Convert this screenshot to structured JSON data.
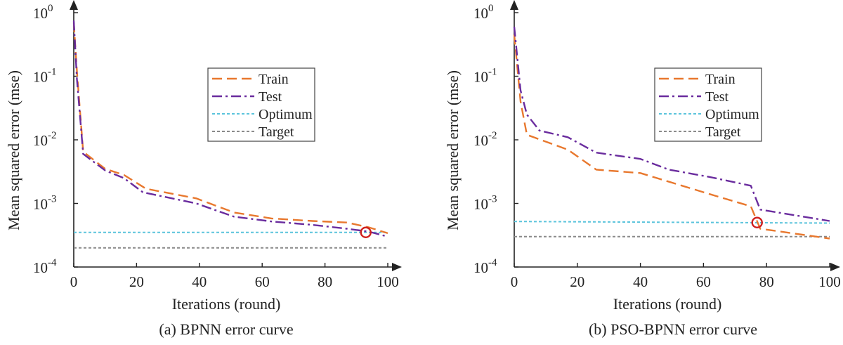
{
  "chart_data": [
    {
      "type": "line",
      "caption": "(a) BPNN error curve",
      "xlabel": "Iterations (round)",
      "ylabel": "Mean squared error (mse)",
      "xlim": [
        0,
        100
      ],
      "xticks": [
        "0",
        "20",
        "40",
        "60",
        "80",
        "100"
      ],
      "yscale": "log",
      "ylim": [
        0.0001,
        1
      ],
      "yticks": [
        {
          "base": "10",
          "exp": "-4"
        },
        {
          "base": "10",
          "exp": "-3"
        },
        {
          "base": "10",
          "exp": "-2"
        },
        {
          "base": "10",
          "exp": "-1"
        },
        {
          "base": "10",
          "exp": "0"
        }
      ],
      "legend_position": "upper-right",
      "series": [
        {
          "name": "Train",
          "color": "#E8782E",
          "style": "dashed",
          "x": [
            0,
            1,
            3,
            10,
            16,
            23,
            39,
            51,
            63,
            76,
            87,
            94,
            100
          ],
          "y": [
            0.7,
            0.12,
            0.0065,
            0.0035,
            0.0028,
            0.0017,
            0.0012,
            0.00072,
            0.00058,
            0.00053,
            0.0005,
            0.00042,
            0.00034
          ]
        },
        {
          "name": "Test",
          "color": "#6A2C9E",
          "style": "dashdot",
          "x": [
            0,
            1,
            3,
            10,
            16,
            22,
            39,
            51,
            63,
            76,
            87,
            94,
            100
          ],
          "y": [
            0.75,
            0.09,
            0.006,
            0.0033,
            0.0025,
            0.0015,
            0.001,
            0.00062,
            0.00052,
            0.00046,
            0.0004,
            0.00036,
            0.0003
          ]
        },
        {
          "name": "Optimum",
          "color": "#5BC4DC",
          "style": "dotted",
          "x": [
            0,
            100
          ],
          "y": [
            0.00035,
            0.00035
          ]
        },
        {
          "name": "Target",
          "color": "#8A8A8A",
          "style": "dotted",
          "x": [
            0,
            100
          ],
          "y": [
            0.0002,
            0.0002
          ]
        }
      ],
      "marker": {
        "x": 93,
        "y": 0.00035,
        "color": "#D0201E"
      }
    },
    {
      "type": "line",
      "caption": "(b) PSO-BPNN  error curve",
      "xlabel": "Iterations (round)",
      "ylabel": "Mean squared error (mse)",
      "xlim": [
        0,
        100
      ],
      "xticks": [
        "0",
        "20",
        "40",
        "60",
        "80",
        "100"
      ],
      "yscale": "log",
      "ylim": [
        0.0001,
        1
      ],
      "yticks": [
        {
          "base": "10",
          "exp": "-4"
        },
        {
          "base": "10",
          "exp": "-3"
        },
        {
          "base": "10",
          "exp": "-2"
        },
        {
          "base": "10",
          "exp": "-1"
        },
        {
          "base": "10",
          "exp": "0"
        }
      ],
      "legend_position": "upper-right",
      "series": [
        {
          "name": "Train",
          "color": "#E8782E",
          "style": "dashed",
          "x": [
            0,
            2,
            4,
            17,
            26,
            40,
            62,
            75,
            78,
            100
          ],
          "y": [
            0.45,
            0.04,
            0.012,
            0.007,
            0.0034,
            0.003,
            0.0014,
            0.0009,
            0.0004,
            0.00028
          ]
        },
        {
          "name": "Test",
          "color": "#6A2C9E",
          "style": "dashdot",
          "x": [
            0,
            2,
            4,
            8,
            17,
            26,
            40,
            49,
            62,
            75,
            78,
            100
          ],
          "y": [
            0.6,
            0.06,
            0.025,
            0.014,
            0.011,
            0.0063,
            0.005,
            0.0034,
            0.0026,
            0.0019,
            0.0008,
            0.00053
          ]
        },
        {
          "name": "Optimum",
          "color": "#5BC4DC",
          "style": "dotted",
          "x": [
            0,
            100
          ],
          "y": [
            0.00052,
            0.00049
          ]
        },
        {
          "name": "Target",
          "color": "#8A8A8A",
          "style": "dotted",
          "x": [
            0,
            100
          ],
          "y": [
            0.0003,
            0.0003
          ]
        }
      ],
      "marker": {
        "x": 77,
        "y": 0.0005,
        "color": "#D0201E"
      }
    }
  ]
}
